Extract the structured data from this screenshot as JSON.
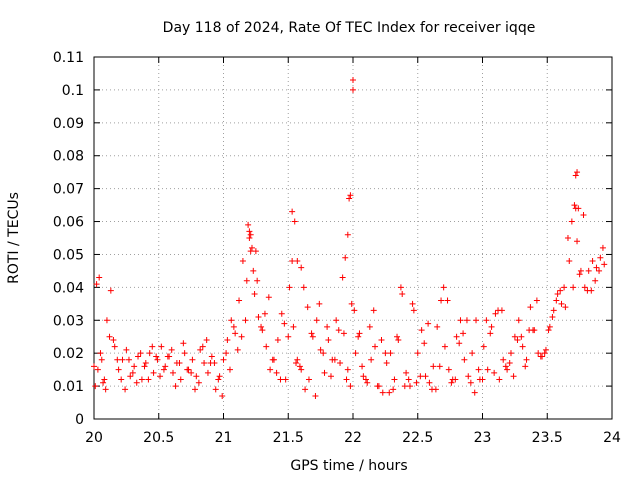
{
  "chart_data": {
    "type": "scatter",
    "title": "Day 118 of 2024, Rate Of TEC Index for receiver iqqe",
    "xlabel": "GPS time / hours",
    "ylabel": "ROTI / TECUs",
    "xlim": [
      20,
      24
    ],
    "ylim": [
      0,
      0.11
    ],
    "xticks": [
      20,
      20.5,
      21,
      21.5,
      22,
      22.5,
      23,
      23.5,
      24
    ],
    "xtick_labels": [
      "20",
      "20.5",
      "21",
      "21.5",
      "22",
      "22.5",
      "23",
      "23.5",
      "24"
    ],
    "yticks": [
      0,
      0.01,
      0.02,
      0.03,
      0.04,
      0.05,
      0.06,
      0.07,
      0.08,
      0.09,
      0.1,
      0.11
    ],
    "ytick_labels": [
      "0",
      "0.01",
      "0.02",
      "0.03",
      "0.04",
      "0.05",
      "0.06",
      "0.07",
      "0.08",
      "0.09",
      "0.1",
      "0.11"
    ],
    "grid": true,
    "marker": "+",
    "marker_color": "#ff0000",
    "series": [
      {
        "name": "ROTI",
        "x": [
          20.0,
          20.02,
          20.04,
          20.06,
          20.08,
          20.1,
          20.13,
          20.16,
          20.19,
          20.22,
          20.25,
          20.28,
          20.31,
          20.34,
          20.37,
          20.4,
          20.43,
          20.46,
          20.49,
          20.52,
          20.55,
          20.58,
          20.61,
          20.64,
          20.67,
          20.7,
          20.73,
          20.76,
          20.79,
          20.82,
          20.85,
          20.88,
          20.91,
          20.94,
          20.97,
          21.0,
          21.03,
          21.06,
          21.09,
          21.12,
          21.15,
          21.18,
          21.21,
          21.24,
          21.27,
          21.3,
          21.33,
          21.36,
          21.39,
          21.42,
          21.45,
          21.48,
          21.51,
          21.54,
          21.57,
          21.6,
          21.63,
          21.66,
          21.69,
          21.72,
          21.75,
          21.78,
          21.81,
          21.84,
          21.87,
          21.9,
          21.93,
          21.96,
          21.99,
          22.02,
          22.05,
          22.08,
          22.11,
          22.14,
          22.17,
          22.2,
          22.23,
          22.26,
          22.29,
          22.32,
          22.35,
          22.38,
          22.41,
          22.44,
          22.47,
          22.5,
          22.53,
          22.56,
          22.59,
          22.62,
          22.65,
          22.68,
          22.71,
          22.74,
          22.77,
          22.8,
          22.83,
          22.86,
          22.89,
          22.92,
          22.95,
          22.98,
          23.01,
          23.04,
          23.07,
          23.1,
          23.13,
          23.16,
          23.19,
          23.22,
          23.25,
          23.28,
          23.31,
          23.34,
          23.37,
          23.4,
          23.43,
          23.46,
          23.49,
          23.52,
          23.55,
          23.58,
          23.61,
          23.64,
          23.67,
          23.7,
          23.73,
          23.76,
          23.79,
          23.82,
          23.85,
          23.88,
          23.91,
          23.94,
          20.01,
          20.05,
          20.09,
          20.15,
          20.21,
          20.27,
          20.33,
          20.39,
          20.45,
          20.51,
          20.57,
          20.63,
          20.69,
          20.75,
          20.81,
          20.87,
          20.93,
          20.99,
          21.05,
          21.11,
          21.17,
          21.23,
          21.29,
          21.35,
          21.41,
          21.47,
          21.53,
          21.59,
          21.65,
          21.71,
          21.77,
          21.83,
          21.89,
          21.95,
          22.01,
          22.07,
          22.13,
          22.19,
          22.25,
          22.31,
          22.37,
          22.43,
          22.49,
          22.55,
          22.61,
          22.67,
          22.73,
          22.79,
          22.85,
          22.91,
          22.97,
          23.03,
          23.09,
          23.15,
          23.21,
          23.27,
          23.33,
          23.39,
          23.45,
          23.51,
          23.57,
          23.63,
          23.69,
          23.75,
          23.81,
          23.87,
          23.93,
          20.03,
          20.07,
          20.12,
          20.18,
          20.24,
          20.3,
          20.36,
          20.42,
          20.48,
          20.54,
          20.6,
          20.66,
          20.72,
          20.78,
          20.84,
          20.9,
          20.96,
          21.02,
          21.08,
          21.14,
          21.2,
          21.26,
          21.32,
          21.38,
          21.44,
          21.5,
          21.56,
          21.62,
          21.68,
          21.74,
          21.8,
          21.86,
          21.92,
          21.98,
          22.04,
          22.1,
          22.16,
          22.22,
          22.28,
          22.34,
          22.4,
          22.46,
          22.52,
          22.58,
          22.64,
          22.7,
          22.76,
          22.82,
          22.88,
          22.94,
          23.0,
          23.06,
          23.12,
          23.18,
          23.24,
          23.3,
          23.36,
          23.42,
          23.48,
          23.54,
          23.6,
          23.66,
          23.72,
          23.78,
          23.84,
          23.9,
          21.19,
          21.2,
          21.22,
          21.53,
          21.55,
          21.97,
          21.98,
          22.0,
          22.0,
          21.96,
          21.94,
          23.72,
          23.73,
          23.71,
          23.74,
          21.21,
          21.25,
          21.57,
          21.6
        ],
        "y": [
          0.016,
          0.041,
          0.043,
          0.018,
          0.012,
          0.03,
          0.039,
          0.022,
          0.015,
          0.018,
          0.021,
          0.013,
          0.016,
          0.019,
          0.012,
          0.017,
          0.02,
          0.014,
          0.018,
          0.022,
          0.016,
          0.019,
          0.014,
          0.017,
          0.012,
          0.02,
          0.015,
          0.018,
          0.013,
          0.021,
          0.017,
          0.014,
          0.019,
          0.009,
          0.013,
          0.018,
          0.024,
          0.03,
          0.026,
          0.036,
          0.048,
          0.042,
          0.051,
          0.038,
          0.031,
          0.027,
          0.022,
          0.015,
          0.018,
          0.024,
          0.032,
          0.012,
          0.04,
          0.028,
          0.018,
          0.015,
          0.009,
          0.012,
          0.025,
          0.03,
          0.021,
          0.014,
          0.024,
          0.018,
          0.03,
          0.017,
          0.026,
          0.015,
          0.035,
          0.02,
          0.026,
          0.013,
          0.011,
          0.018,
          0.022,
          0.01,
          0.008,
          0.017,
          0.02,
          0.012,
          0.024,
          0.038,
          0.014,
          0.01,
          0.033,
          0.02,
          0.027,
          0.013,
          0.011,
          0.016,
          0.028,
          0.036,
          0.022,
          0.015,
          0.012,
          0.025,
          0.03,
          0.018,
          0.013,
          0.02,
          0.03,
          0.012,
          0.022,
          0.015,
          0.028,
          0.032,
          0.012,
          0.018,
          0.015,
          0.02,
          0.025,
          0.03,
          0.022,
          0.018,
          0.034,
          0.027,
          0.02,
          0.019,
          0.021,
          0.028,
          0.033,
          0.038,
          0.035,
          0.034,
          0.048,
          0.04,
          0.054,
          0.045,
          0.04,
          0.045,
          0.048,
          0.046,
          0.049,
          0.047,
          0.01,
          0.02,
          0.009,
          0.024,
          0.012,
          0.018,
          0.011,
          0.016,
          0.022,
          0.013,
          0.019,
          0.01,
          0.023,
          0.014,
          0.011,
          0.024,
          0.017,
          0.007,
          0.015,
          0.021,
          0.03,
          0.045,
          0.028,
          0.037,
          0.014,
          0.029,
          0.048,
          0.016,
          0.034,
          0.007,
          0.02,
          0.013,
          0.027,
          0.012,
          0.033,
          0.016,
          0.028,
          0.01,
          0.02,
          0.009,
          0.04,
          0.012,
          0.011,
          0.023,
          0.009,
          0.016,
          0.036,
          0.012,
          0.026,
          0.011,
          0.015,
          0.03,
          0.014,
          0.033,
          0.017,
          0.024,
          0.016,
          0.027,
          0.019,
          0.027,
          0.036,
          0.04,
          0.06,
          0.044,
          0.039,
          0.042,
          0.052,
          0.015,
          0.011,
          0.025,
          0.018,
          0.009,
          0.014,
          0.02,
          0.012,
          0.019,
          0.015,
          0.021,
          0.017,
          0.015,
          0.009,
          0.022,
          0.017,
          0.012,
          0.02,
          0.028,
          0.025,
          0.055,
          0.042,
          0.032,
          0.018,
          0.012,
          0.025,
          0.017,
          0.04,
          0.026,
          0.035,
          0.028,
          0.018,
          0.043,
          0.01,
          0.025,
          0.012,
          0.033,
          0.024,
          0.008,
          0.025,
          0.01,
          0.035,
          0.013,
          0.029,
          0.009,
          0.04,
          0.011,
          0.023,
          0.03,
          0.008,
          0.012,
          0.026,
          0.033,
          0.016,
          0.013,
          0.025,
          0.027,
          0.036,
          0.02,
          0.031,
          0.039,
          0.055,
          0.064,
          0.062,
          0.039,
          0.045,
          0.059,
          0.057,
          0.052,
          0.063,
          0.06,
          0.067,
          0.068,
          0.1,
          0.103,
          0.056,
          0.049,
          0.074,
          0.075,
          0.065,
          0.064,
          0.056,
          0.051,
          0.048,
          0.046
        ]
      }
    ]
  }
}
